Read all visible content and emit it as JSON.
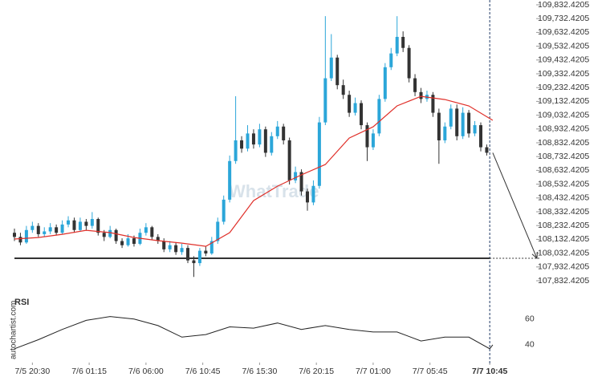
{
  "chart_data": {
    "type": "candlestick",
    "x": [
      -1.5,
      -1,
      -0.5,
      0,
      0.5,
      1,
      1.5,
      2,
      2.5,
      3,
      3.5,
      4,
      4.5,
      5,
      5.5,
      6,
      6.5,
      7,
      7.5,
      8,
      8.5,
      9,
      9.5,
      10,
      10.5,
      11,
      11.5,
      12,
      12.5,
      13,
      13.5,
      14,
      14.5,
      15,
      15.5,
      16,
      16.5,
      17,
      17.5,
      18,
      18.5,
      19,
      19.5,
      20,
      20.5,
      21,
      21.5,
      22,
      22.5,
      23,
      23.5,
      24,
      24.5,
      25,
      25.5,
      26,
      26.5,
      27,
      27.5,
      28,
      28.5,
      29,
      29.5,
      30,
      30.5,
      31,
      31.5,
      32,
      32.5,
      33,
      33.5,
      34,
      34.5,
      35,
      35.5,
      36,
      36.5,
      37,
      37.5,
      38
    ],
    "open": [
      108180,
      108150,
      108110,
      108200,
      108230,
      108170,
      108190,
      108220,
      108180,
      108240,
      108270,
      108200,
      108260,
      108230,
      108280,
      108180,
      108150,
      108200,
      108120,
      108090,
      108140,
      108100,
      108180,
      108220,
      108150,
      108120,
      108060,
      108090,
      108040,
      108070,
      107980,
      107960,
      108050,
      108030,
      108120,
      108260,
      108420,
      108700,
      108850,
      108790,
      108900,
      108820,
      108930,
      108760,
      108880,
      108950,
      108850,
      108560,
      108620,
      108480,
      108400,
      108520,
      108980,
      109300,
      109450,
      109250,
      109180,
      109050,
      109120,
      108960,
      108800,
      108900,
      109150,
      109380,
      109480,
      109600,
      109520,
      109300,
      109200,
      109150,
      109180,
      109050,
      108850,
      108950,
      109080,
      108880,
      109050,
      108900,
      108960,
      108800
    ],
    "high": [
      108210,
      108180,
      108230,
      108260,
      108250,
      108220,
      108250,
      108240,
      108270,
      108300,
      108290,
      108290,
      108280,
      108330,
      108290,
      108200,
      108230,
      108210,
      108140,
      108170,
      108160,
      108210,
      108250,
      108230,
      108170,
      108140,
      108120,
      108110,
      108100,
      108090,
      108010,
      108070,
      108080,
      108150,
      108290,
      108450,
      108740,
      109170,
      108880,
      108960,
      108930,
      108970,
      108950,
      108910,
      108990,
      108970,
      108870,
      108660,
      108640,
      108500,
      108560,
      109020,
      109750,
      109620,
      109470,
      109290,
      109210,
      109160,
      109140,
      108980,
      108930,
      109180,
      109410,
      109520,
      109750,
      109640,
      109540,
      109330,
      109230,
      109210,
      109200,
      109080,
      108980,
      109110,
      109110,
      109090,
      109070,
      108990,
      108980,
      108820
    ],
    "low": [
      108120,
      108090,
      108100,
      108180,
      108150,
      108150,
      108170,
      108160,
      108170,
      108220,
      108180,
      108190,
      108200,
      108210,
      108160,
      108120,
      108140,
      108100,
      108070,
      108080,
      108080,
      108090,
      108160,
      108130,
      108100,
      108040,
      108040,
      108020,
      108020,
      107960,
      107860,
      107940,
      108010,
      108020,
      108100,
      108240,
      108400,
      108680,
      108760,
      108770,
      108790,
      108800,
      108730,
      108740,
      108860,
      108820,
      108530,
      108540,
      108450,
      108340,
      108380,
      108500,
      108960,
      109280,
      109220,
      109150,
      109020,
      109030,
      108930,
      108700,
      108780,
      108880,
      109130,
      109360,
      109460,
      109490,
      109270,
      109170,
      109120,
      109130,
      109020,
      108680,
      108830,
      108930,
      108850,
      108860,
      108870,
      108880,
      108770,
      108740
    ],
    "close": [
      108150,
      108110,
      108200,
      108230,
      108170,
      108190,
      108220,
      108180,
      108240,
      108270,
      108200,
      108260,
      108230,
      108280,
      108180,
      108150,
      108200,
      108120,
      108090,
      108140,
      108100,
      108180,
      108220,
      108150,
      108120,
      108060,
      108090,
      108040,
      108070,
      107980,
      107960,
      108050,
      108030,
      108120,
      108260,
      108420,
      108700,
      108850,
      108790,
      108900,
      108820,
      108930,
      108760,
      108880,
      108950,
      108850,
      108560,
      108620,
      108480,
      108400,
      108520,
      108980,
      109300,
      109450,
      109250,
      109180,
      109050,
      109120,
      108960,
      108800,
      108900,
      109150,
      109380,
      109480,
      109600,
      109520,
      109300,
      109200,
      109150,
      109180,
      109050,
      108850,
      108950,
      109080,
      108880,
      109050,
      108900,
      108960,
      108800,
      108760
    ],
    "up_color": "#2ba6d9",
    "down_color": "#333333",
    "xlim": [
      -1.5,
      42.4
    ],
    "xticks": [
      {
        "value": 0,
        "label": "7/5 20:30"
      },
      {
        "value": 4.75,
        "label": "7/6 01:15"
      },
      {
        "value": 9.5,
        "label": "7/6 06:00"
      },
      {
        "value": 14.25,
        "label": "7/6 10:45"
      },
      {
        "value": 19,
        "label": "7/6 15:30"
      },
      {
        "value": 23.75,
        "label": "7/6 20:15"
      },
      {
        "value": 28.5,
        "label": "7/7 01:00"
      },
      {
        "value": 33.25,
        "label": "7/7 05:45"
      },
      {
        "value": 38.25,
        "label": "7/7 10:45"
      }
    ],
    "ylim": [
      107832.4205,
      109832.4205
    ],
    "yticks": [
      {
        "value": 109832.4205,
        "label": "109,832.4205"
      },
      {
        "value": 109732.4205,
        "label": "109,732.4205"
      },
      {
        "value": 109632.4205,
        "label": "109,632.4205"
      },
      {
        "value": 109532.4205,
        "label": "109,532.4205"
      },
      {
        "value": 109432.4205,
        "label": "109,432.4205"
      },
      {
        "value": 109332.4205,
        "label": "109,332.4205"
      },
      {
        "value": 109232.4205,
        "label": "109,232.4205"
      },
      {
        "value": 109132.4205,
        "label": "109,132.4205"
      },
      {
        "value": 109032.4205,
        "label": "109,032.4205"
      },
      {
        "value": 108932.4205,
        "label": "108,932.4205"
      },
      {
        "value": 108832.4205,
        "label": "108,832.4205"
      },
      {
        "value": 108732.4205,
        "label": "108,732.4205"
      },
      {
        "value": 108632.4205,
        "label": "108,632.4205"
      },
      {
        "value": 108532.4205,
        "label": "108,532.4205"
      },
      {
        "value": 108432.4205,
        "label": "108,432.4205"
      },
      {
        "value": 108332.4205,
        "label": "108,332.4205"
      },
      {
        "value": 108232.4205,
        "label": "108,232.4205"
      },
      {
        "value": 108132.4205,
        "label": "108,132.4205"
      },
      {
        "value": 108032.4205,
        "label": "108,032.4205"
      },
      {
        "value": 107932.4205,
        "label": "107,932.4205"
      },
      {
        "value": 107832.4205,
        "label": "107,832.4205"
      }
    ],
    "ma": {
      "color": "#e0302a",
      "x": [
        -1.5,
        0.5,
        2.5,
        4.5,
        6.5,
        8.5,
        10.5,
        12.5,
        14.5,
        16.5,
        18.5,
        20.5,
        22.5,
        24.5,
        26.5,
        28.5,
        30.5,
        32.5,
        34.5,
        36.5,
        38.5
      ],
      "values": [
        108135,
        108146,
        108169,
        108198,
        108181,
        108146,
        108123,
        108105,
        108082,
        108181,
        108413,
        108518,
        108600,
        108675,
        108867,
        108948,
        109100,
        109169,
        109146,
        109100,
        108995
      ]
    },
    "level": 107995,
    "level_color": "#333333",
    "arrow": {
      "x": [
        38.5,
        42.2
      ],
      "y": [
        108760,
        107995
      ]
    },
    "rsi": {
      "label": "RSI",
      "color": "#222222",
      "ylim": [
        27.5,
        68
      ],
      "yticks": [
        40,
        60
      ],
      "x": [
        -1.5,
        0.5,
        2.5,
        4.5,
        6.5,
        8.5,
        10.5,
        12.5,
        14.5,
        16.5,
        18.5,
        20.5,
        22.5,
        24.5,
        26.5,
        28.5,
        30.5,
        32.5,
        34.5,
        36.5,
        38.25,
        38.5
      ],
      "values": [
        37,
        44,
        52,
        59,
        62,
        60,
        55,
        46,
        48,
        54,
        53,
        57,
        52,
        55,
        52,
        50,
        50,
        43,
        46,
        46,
        37,
        40
      ]
    },
    "watermark": "WhatTrade",
    "source": "autochartist.com"
  }
}
